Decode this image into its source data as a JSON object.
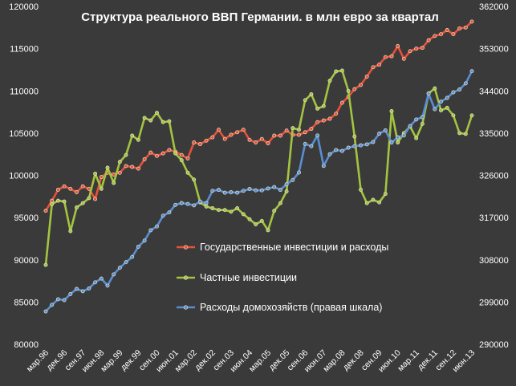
{
  "chart_data": {
    "type": "line",
    "title": "Структура реального ВВП Германии. в млн евро за квартал",
    "x": [
      "мар.96",
      "июн.96",
      "сен.96",
      "дек.96",
      "мар.97",
      "июн.97",
      "сен.97",
      "дек.97",
      "мар.98",
      "июн.98",
      "сен.98",
      "дек.98",
      "мар.99",
      "июн.99",
      "сен.99",
      "дек.99",
      "мар.00",
      "июн.00",
      "сен.00",
      "дек.00",
      "мар.01",
      "июн.01",
      "сен.01",
      "дек.01",
      "мар.02",
      "июн.02",
      "сен.02",
      "дек.02",
      "мар.03",
      "июн.03",
      "сен.03",
      "дек.03",
      "мар.04",
      "июн.04",
      "сен.04",
      "дек.04",
      "мар.05",
      "июн.05",
      "сен.05",
      "дек.05",
      "мар.06",
      "июн.06",
      "сен.06",
      "дек.06",
      "мар.07",
      "июн.07",
      "сен.07",
      "дек.07",
      "мар.08",
      "июн.08",
      "сен.08",
      "дек.08",
      "мар.09",
      "июн.09",
      "сен.09",
      "дек.09",
      "мар.10",
      "июн.10",
      "сен.10",
      "дек.10",
      "мар.11",
      "июн.11",
      "сен.11",
      "дек.11",
      "мар.12",
      "июн.12",
      "сен.12",
      "дек.12",
      "мар.13",
      "июн.13"
    ],
    "x_tick_labels": [
      "мар.96",
      "дек.96",
      "сен.97",
      "июн.98",
      "мар.99",
      "дек.99",
      "сен.00",
      "июн.01",
      "мар.02",
      "дек.02",
      "сен.03",
      "июн.04",
      "мар.05",
      "дек.05",
      "сен.06",
      "июн.07",
      "мар.08",
      "дек.08",
      "сен.09",
      "июн.10",
      "мар.11",
      "дек.11",
      "сен.12",
      "июн.13"
    ],
    "y_left": {
      "min": 80000,
      "max": 120000,
      "ticks": [
        "80000",
        "85000",
        "90000",
        "95000",
        "100000",
        "105000",
        "110000",
        "115000",
        "120000"
      ]
    },
    "y_right": {
      "min": 290000,
      "max": 362000,
      "ticks": [
        "290000",
        "299000",
        "308000",
        "317000",
        "326000",
        "335000",
        "344000",
        "353000",
        "362000"
      ]
    },
    "grid": false,
    "legend_position": "inside-lower-center",
    "series": [
      {
        "name": "Государственные инвестиции и расходы",
        "axis": "left",
        "color": "#e8513a",
        "values": [
          95800,
          97000,
          98300,
          98700,
          98400,
          98000,
          98700,
          98400,
          97200,
          99800,
          100300,
          100100,
          100300,
          101100,
          101000,
          100800,
          101900,
          102700,
          102300,
          102600,
          103000,
          102800,
          102400,
          102000,
          103900,
          103700,
          104100,
          104500,
          105400,
          104300,
          104800,
          105100,
          105400,
          104200,
          103900,
          104300,
          103800,
          104700,
          104700,
          105300,
          104800,
          104800,
          105100,
          105500,
          106300,
          106500,
          106700,
          107300,
          108600,
          109300,
          110200,
          110700,
          111700,
          112800,
          113100,
          114000,
          114100,
          115300,
          113800,
          114700,
          115000,
          115100,
          116000,
          116500,
          116700,
          117200,
          116700,
          117400,
          117500,
          118200
        ]
      },
      {
        "name": "Частные инвестиции",
        "axis": "left",
        "color": "#a4c440",
        "values": [
          89400,
          96600,
          97000,
          96900,
          93400,
          96200,
          96700,
          97300,
          100200,
          98400,
          100900,
          99100,
          101600,
          102400,
          104700,
          104200,
          106800,
          106500,
          107400,
          106300,
          106400,
          102600,
          101800,
          100300,
          99500,
          96800,
          96300,
          96100,
          95900,
          95900,
          95700,
          96100,
          95400,
          94800,
          94200,
          94600,
          93500,
          95800,
          96700,
          98100,
          105600,
          105400,
          108900,
          109600,
          107900,
          108200,
          111200,
          112300,
          112400,
          110000,
          104600,
          98300,
          96700,
          97100,
          96800,
          97800,
          107600,
          103900,
          105000,
          105800,
          104400,
          106100,
          109700,
          110300,
          107700,
          108000,
          107100,
          105000,
          104900,
          107100
        ]
      },
      {
        "name": "Расходы домохозяйств (правая шкала)",
        "axis": "right",
        "color": "#5a8ed2",
        "values": [
          297000,
          298400,
          299600,
          299400,
          300700,
          301800,
          301300,
          301900,
          303200,
          304000,
          302500,
          304900,
          306300,
          307500,
          308600,
          310800,
          312100,
          314300,
          315100,
          317400,
          318100,
          319700,
          320100,
          319900,
          319600,
          320400,
          320100,
          322700,
          322900,
          322300,
          322400,
          322300,
          322700,
          323100,
          322800,
          322800,
          323200,
          323500,
          322900,
          324100,
          325000,
          326600,
          332700,
          332200,
          334500,
          328000,
          330500,
          331400,
          331200,
          331900,
          332200,
          332400,
          332600,
          333100,
          334900,
          335600,
          333000,
          334100,
          334500,
          336500,
          337900,
          338400,
          343400,
          340100,
          341700,
          342500,
          343700,
          344300,
          345600,
          348200
        ]
      }
    ]
  }
}
